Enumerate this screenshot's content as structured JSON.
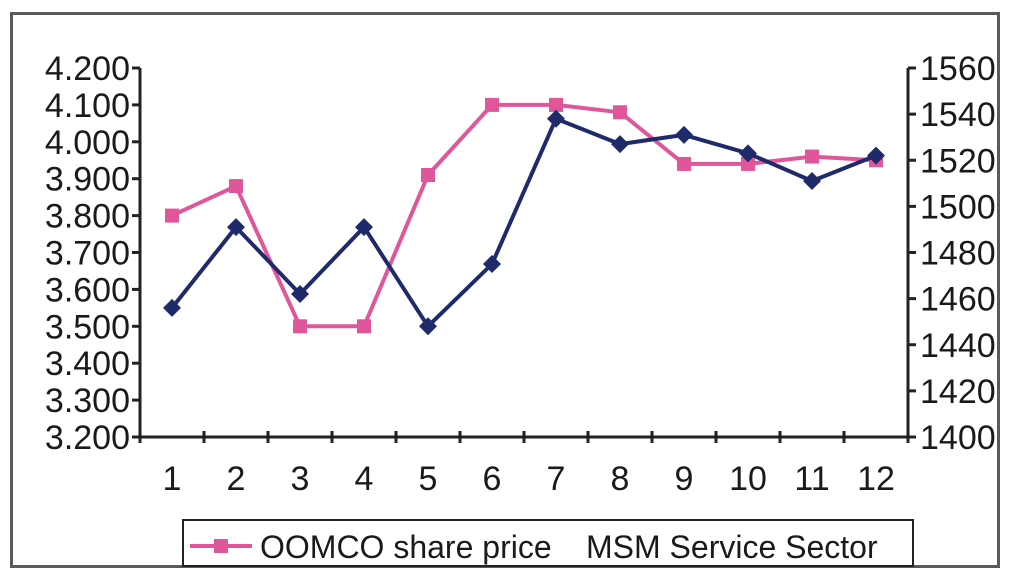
{
  "chart_data": {
    "type": "line",
    "x": [
      1,
      2,
      3,
      4,
      5,
      6,
      7,
      8,
      9,
      10,
      11,
      12
    ],
    "categories": [
      "1",
      "2",
      "3",
      "4",
      "5",
      "6",
      "7",
      "8",
      "9",
      "10",
      "11",
      "12"
    ],
    "y_left": {
      "ylim": [
        3.2,
        4.2
      ],
      "ticks": [
        "4.200",
        "4.100",
        "4.000",
        "3.900",
        "3.800",
        "3.700",
        "3.600",
        "3.500",
        "3.400",
        "3.300",
        "3.200"
      ]
    },
    "y_right": {
      "ylim": [
        1400,
        1560
      ],
      "ticks": [
        "1560",
        "1540",
        "1520",
        "1500",
        "1480",
        "1460",
        "1440",
        "1420",
        "1400"
      ]
    },
    "series": [
      {
        "name": "OOMCO share price",
        "axis": "left",
        "color": "#e0569a",
        "marker": "square",
        "values": [
          3.8,
          3.88,
          3.5,
          3.5,
          3.91,
          4.1,
          4.1,
          4.08,
          3.94,
          3.94,
          3.96,
          3.95
        ]
      },
      {
        "name": "MSM Service Sector",
        "axis": "right",
        "color": "#1f2a6b",
        "marker": "diamond",
        "values": [
          1456,
          1491,
          1462,
          1491,
          1448,
          1475,
          1538,
          1527,
          1531,
          1523,
          1511,
          1522
        ]
      }
    ],
    "grid": false,
    "legend_position": "bottom"
  }
}
